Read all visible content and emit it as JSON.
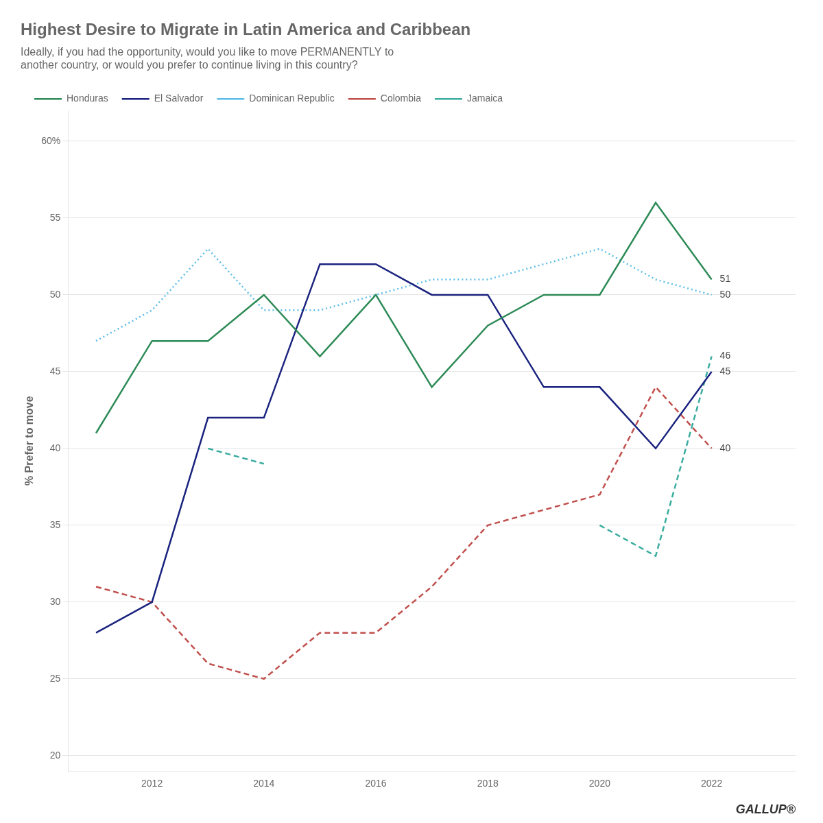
{
  "chart_data": {
    "type": "line",
    "title": "Highest Desire to Migrate in Latin America and Caribbean",
    "subtitle": [
      "Ideally, if you had the opportunity, would you like to move PERMANENTLY to",
      "another country, or would you prefer to continue living in this country?"
    ],
    "ylabel": "% Prefer to move",
    "x": [
      2011,
      2012,
      2013,
      2014,
      2015,
      2016,
      2017,
      2018,
      2019,
      2020,
      2021,
      2022
    ],
    "series": [
      {
        "name": "Honduras",
        "color": "#2e8b57",
        "line_style": "solid",
        "values": [
          41,
          47,
          47,
          50,
          46,
          50,
          44,
          48,
          50,
          50,
          56,
          51
        ]
      },
      {
        "name": "El Salvador",
        "color": "#1a237e",
        "line_style": "solid",
        "values": [
          28,
          30,
          42,
          42,
          52,
          52,
          50,
          50,
          44,
          44,
          40,
          45
        ]
      },
      {
        "name": "Dominican Republic",
        "color": "#5bbde8",
        "line_style": "dotted",
        "values": [
          47,
          49,
          53,
          49,
          49,
          50,
          51,
          51,
          52,
          53,
          51,
          50
        ]
      },
      {
        "name": "Colombia",
        "color": "#c0504d",
        "line_style": "dashed",
        "values": [
          31,
          30,
          26,
          25,
          28,
          28,
          31,
          35,
          36,
          37,
          44,
          40
        ]
      },
      {
        "name": "Jamaica",
        "color": "#3aada0",
        "line_style": "dashed",
        "values": [
          null,
          null,
          40,
          39,
          null,
          null,
          null,
          null,
          null,
          35,
          33,
          46
        ]
      }
    ],
    "xlim": [
      2010.5,
      2023.5
    ],
    "xticks": [
      2012,
      2014,
      2016,
      2018,
      2020,
      2022
    ],
    "ylim": [
      19,
      62
    ],
    "yticks": [
      20,
      25,
      30,
      35,
      40,
      45,
      50,
      55,
      {
        "value": 60,
        "label": "60%"
      }
    ],
    "grid": "y",
    "legend": "top",
    "annotations": [
      {
        "series": "Honduras",
        "text": "51",
        "y": 51
      },
      {
        "series": "El Salvador",
        "text": "45",
        "y": 45
      },
      {
        "series": "Dominican Republic",
        "text": "50",
        "y": 50
      },
      {
        "series": "Colombia",
        "text": "40",
        "y": 40
      },
      {
        "series": "Jamaica",
        "text": "46",
        "y": 46
      }
    ],
    "credit": "GALLUP®"
  }
}
